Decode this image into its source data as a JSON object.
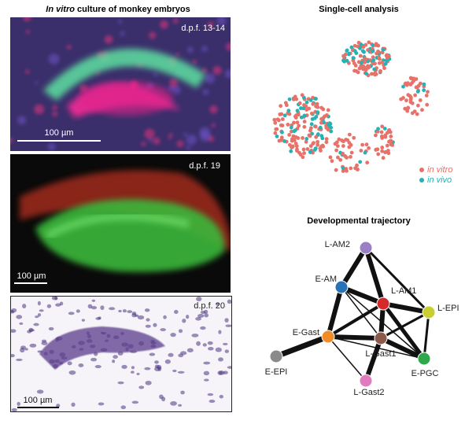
{
  "figure": {
    "imaging": {
      "title_italic": "In vitro",
      "title_rest": "culture of monkey embryos",
      "panels": [
        {
          "stage": "d.p.f. 13-14",
          "scale": "100 µm"
        },
        {
          "stage": "d.p.f. 19",
          "scale": "100 µm"
        },
        {
          "stage": "d.p.f. 20",
          "scale": "100 µm"
        }
      ]
    },
    "single_cell": {
      "title": "Single-cell analysis",
      "legend": [
        {
          "label": "in vitro",
          "color": "#e8716a"
        },
        {
          "label": "in vivo",
          "color": "#23b3b5"
        }
      ]
    },
    "trajectory": {
      "title": "Developmental trajectory",
      "nodes": [
        {
          "label": "L-AM2",
          "color": "#9b7fc6"
        },
        {
          "label": "E-AM",
          "color": "#2a72b8"
        },
        {
          "label": "L-AM1",
          "color": "#d42a2a"
        },
        {
          "label": "L-EPI",
          "color": "#c9cf30"
        },
        {
          "label": "E-Gast",
          "color": "#f28c28"
        },
        {
          "label": "L-Gast1",
          "color": "#8b5a4a"
        },
        {
          "label": "E-PGC",
          "color": "#2fa84a"
        },
        {
          "label": "E-EPI",
          "color": "#8a8a8a"
        },
        {
          "label": "L-Gast2",
          "color": "#e07bbf"
        }
      ]
    }
  }
}
